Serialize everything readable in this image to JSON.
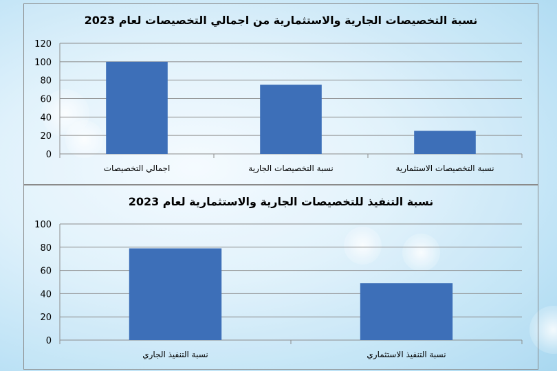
{
  "chart_data": [
    {
      "type": "bar",
      "title": "نسبة التخصيصات الجارية والاستثمارية من اجمالي التخصيصات لعام 2023",
      "categories": [
        "اجمالي التخصيصات",
        "نسبة التخصيصات الجارية",
        "نسبة التخصيصات الاستثمارية"
      ],
      "values": [
        100,
        75,
        25
      ],
      "ylim": [
        0,
        120
      ],
      "yticks": [
        0,
        20,
        40,
        60,
        80,
        100,
        120
      ],
      "grid": true,
      "bar_color": "#3d6fb8"
    },
    {
      "type": "bar",
      "title": "نسبة التنفيذ للتخصيصات الجارية والاستثمارية لعام 2023",
      "categories": [
        "نسبة التنفيذ الجاري",
        "نسبة التنفيذ الاستثماري"
      ],
      "values": [
        79,
        49
      ],
      "ylim": [
        0,
        100
      ],
      "yticks": [
        0,
        20,
        40,
        60,
        80,
        100
      ],
      "grid": true,
      "bar_color": "#3d6fb8"
    }
  ]
}
